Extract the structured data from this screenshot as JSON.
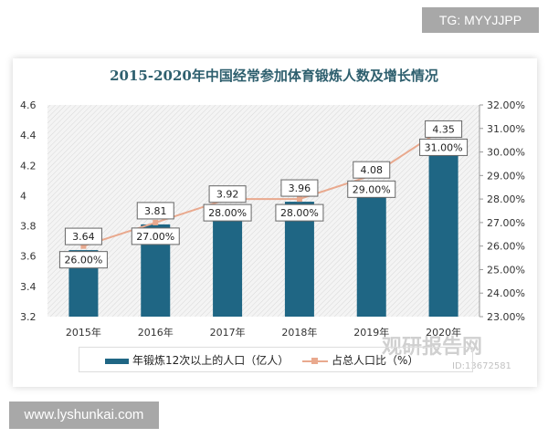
{
  "watermark_top": "TG: MYYJJPP",
  "watermark_bottom": "www.lyshunkai.com",
  "logo_watermark": {
    "name": "观研报告网",
    "id": "ID:13672581"
  },
  "chart_data": {
    "type": "bar+line",
    "title": "2015-2020年中国经常参加体育锻炼人数及增长情况",
    "categories": [
      "2015年",
      "2016年",
      "2017年",
      "2018年",
      "2019年",
      "2020年"
    ],
    "series": [
      {
        "name": "年锻炼12次以上的人口（亿人）",
        "type": "bar",
        "axis": "left",
        "values": [
          3.64,
          3.81,
          3.92,
          3.96,
          4.08,
          4.35
        ],
        "labels": [
          "3.64",
          "3.81",
          "3.92",
          "3.96",
          "4.08",
          "4.35"
        ],
        "color": "#1f6684"
      },
      {
        "name": "占总人口比（%）",
        "type": "line",
        "axis": "right",
        "values": [
          26,
          27,
          28,
          28,
          29,
          31
        ],
        "labels": [
          "26.00%",
          "27.00%",
          "28.00%",
          "28.00%",
          "29.00%",
          "31.00%"
        ],
        "color": "#e9a98e"
      }
    ],
    "y_left": {
      "min": 3.2,
      "max": 4.6,
      "ticks": [
        "3.2",
        "3.4",
        "3.6",
        "3.8",
        "4",
        "4.2",
        "4.4",
        "4.6"
      ]
    },
    "y_right": {
      "min": 23,
      "max": 32,
      "ticks": [
        "23.00%",
        "24.00%",
        "25.00%",
        "26.00%",
        "27.00%",
        "28.00%",
        "29.00%",
        "30.00%",
        "31.00%",
        "32.00%"
      ]
    },
    "legend": "bottom",
    "grid": false
  }
}
